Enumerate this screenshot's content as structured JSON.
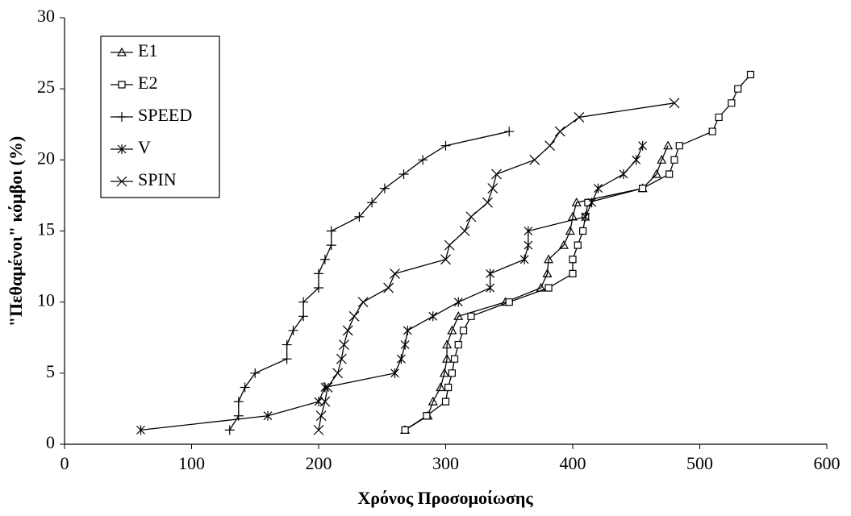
{
  "chart_data": {
    "type": "line",
    "x_label": "Χρόνος Προσομοίωσης",
    "y_label": "\"Πεθαμένοι\" κόμβοι (%)",
    "xlim": [
      0,
      600
    ],
    "xticks": [
      0,
      100,
      200,
      300,
      400,
      500,
      600
    ],
    "ylim": [
      0,
      30
    ],
    "yticks": [
      0,
      5,
      10,
      15,
      20,
      25,
      30
    ],
    "legend": "upper left",
    "series": [
      {
        "name": "E1",
        "color": "#000000",
        "marker": "triangle",
        "x": [
          268,
          286,
          290,
          296,
          299,
          301,
          301,
          305,
          310,
          347,
          375,
          380,
          381,
          393,
          398,
          400,
          403,
          455,
          466,
          470,
          475
        ],
        "values": [
          1,
          2,
          3,
          4,
          5,
          6,
          7,
          8,
          9,
          10,
          11,
          12,
          13,
          14,
          15,
          16,
          17,
          18,
          19,
          20,
          21
        ]
      },
      {
        "name": "E2",
        "color": "#000000",
        "marker": "square",
        "x": [
          268,
          285,
          300,
          302,
          305,
          307,
          310,
          314,
          320,
          350,
          381,
          400,
          400,
          404,
          408,
          410,
          412,
          455,
          476,
          480,
          484,
          510,
          515,
          525,
          530,
          540
        ],
        "values": [
          1,
          2,
          3,
          4,
          5,
          6,
          7,
          8,
          9,
          10,
          11,
          12,
          13,
          14,
          15,
          16,
          17,
          18,
          19,
          20,
          21,
          22,
          23,
          24,
          25,
          26
        ]
      },
      {
        "name": "SPEED",
        "color": "#000000",
        "marker": "plus",
        "x": [
          130,
          137,
          137,
          142,
          150,
          175,
          175,
          180,
          188,
          188,
          200,
          200,
          205,
          210,
          210,
          232,
          242,
          252,
          267,
          282,
          300,
          350
        ],
        "values": [
          1,
          2,
          3,
          4,
          5,
          6,
          7,
          8,
          9,
          10,
          11,
          12,
          13,
          14,
          15,
          16,
          17,
          18,
          19,
          20,
          21,
          22
        ]
      },
      {
        "name": "V",
        "color": "#000000",
        "marker": "star",
        "x": [
          60,
          160,
          200,
          205,
          260,
          265,
          268,
          270,
          290,
          310,
          335,
          335,
          362,
          365,
          365,
          410,
          415,
          420,
          440,
          450,
          455
        ],
        "values": [
          1,
          2,
          3,
          4,
          5,
          6,
          7,
          8,
          9,
          10,
          11,
          12,
          13,
          14,
          15,
          16,
          17,
          18,
          19,
          20,
          21
        ]
      },
      {
        "name": "SPIN",
        "color": "#000000",
        "marker": "cross",
        "x": [
          200,
          202,
          205,
          207,
          215,
          218,
          220,
          223,
          228,
          235,
          255,
          260,
          300,
          303,
          315,
          320,
          333,
          337,
          340,
          370,
          382,
          390,
          405,
          480
        ],
        "values": [
          1,
          2,
          3,
          4,
          5,
          6,
          7,
          8,
          9,
          10,
          11,
          12,
          13,
          14,
          15,
          16,
          17,
          18,
          19,
          20,
          21,
          22,
          23,
          24
        ]
      }
    ]
  }
}
